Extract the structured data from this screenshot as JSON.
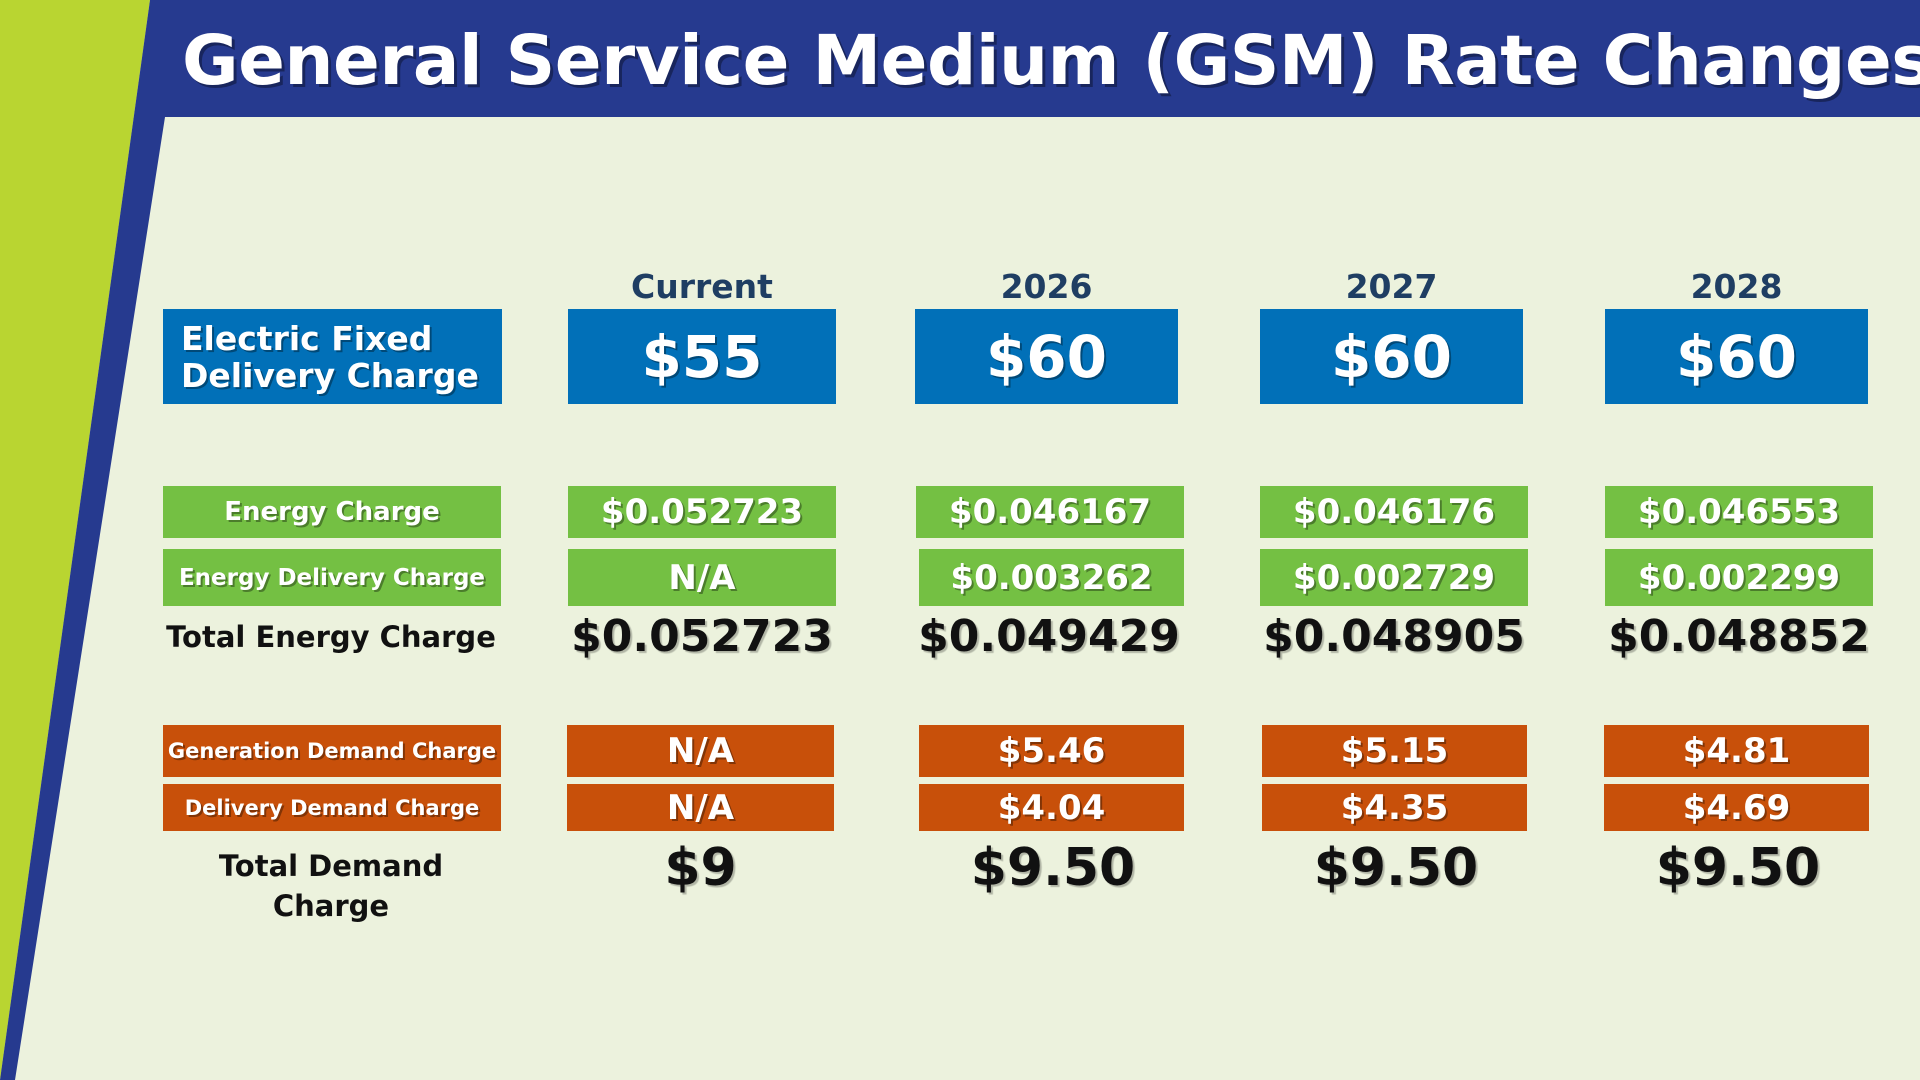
{
  "title": "General Service Medium (GSM) Rate Changes",
  "colors": {
    "blue": "#0170b8",
    "navy": "#263a8f",
    "green": "#74c043",
    "lime": "#b9d531",
    "orange": "#c8500a",
    "background": "#ecf2dd"
  },
  "columns": [
    "Current",
    "2026",
    "2027",
    "2028"
  ],
  "fixed_delivery": {
    "label": "Electric Fixed Delivery Charge",
    "values": [
      "$55",
      "$60",
      "$60",
      "$60"
    ]
  },
  "energy_charge": {
    "label": "Energy Charge",
    "values": [
      "$0.052723",
      "$0.046167",
      "$0.046176",
      "$0.046553"
    ]
  },
  "energy_delivery": {
    "label": "Energy Delivery Charge",
    "values": [
      "N/A",
      "$0.003262",
      "$0.002729",
      "$0.002299"
    ]
  },
  "total_energy": {
    "label": "Total Energy Charge",
    "values": [
      "$0.052723",
      "$0.049429",
      "$0.048905",
      "$0.048852"
    ]
  },
  "generation_demand": {
    "label": "Generation Demand Charge",
    "values": [
      "N/A",
      "$5.46",
      "$5.15",
      "$4.81"
    ]
  },
  "delivery_demand": {
    "label": "Delivery Demand Charge",
    "values": [
      "N/A",
      "$4.04",
      "$4.35",
      "$4.69"
    ]
  },
  "total_demand": {
    "label": "Total Demand Charge",
    "values": [
      "$9",
      "$9.50",
      "$9.50",
      "$9.50"
    ]
  }
}
